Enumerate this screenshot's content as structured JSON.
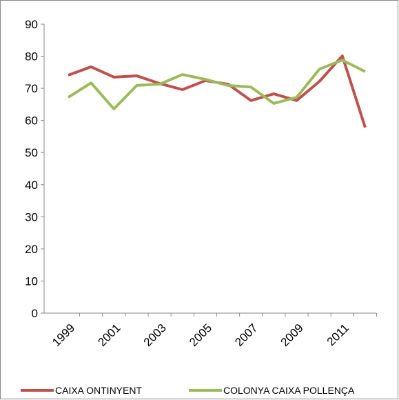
{
  "chart_data": {
    "type": "line",
    "categories": [
      "1999",
      null,
      "2001",
      null,
      "2003",
      null,
      "2005",
      null,
      "2007",
      null,
      "2009",
      null,
      "2011",
      null
    ],
    "series": [
      {
        "name": "CAIXA ONTINYENT",
        "color": "#c0504d",
        "values": [
          74.1,
          76.7,
          73.5,
          73.9,
          71.5,
          69.6,
          72.4,
          71.3,
          66.2,
          68.3,
          66.2,
          72.2,
          80.1,
          57.8
        ]
      },
      {
        "name": "COLONYA CAIXA POLLENÇA",
        "color": "#9bbb59",
        "values": [
          67.2,
          71.7,
          63.6,
          70.9,
          71.3,
          74.3,
          72.8,
          70.9,
          70.4,
          65.3,
          67.2,
          76.0,
          78.8,
          75.2
        ]
      }
    ],
    "ylim": [
      0,
      90
    ],
    "yticks": [
      0,
      10,
      20,
      30,
      40,
      50,
      60,
      70,
      80,
      90
    ],
    "legend": "bottom"
  }
}
